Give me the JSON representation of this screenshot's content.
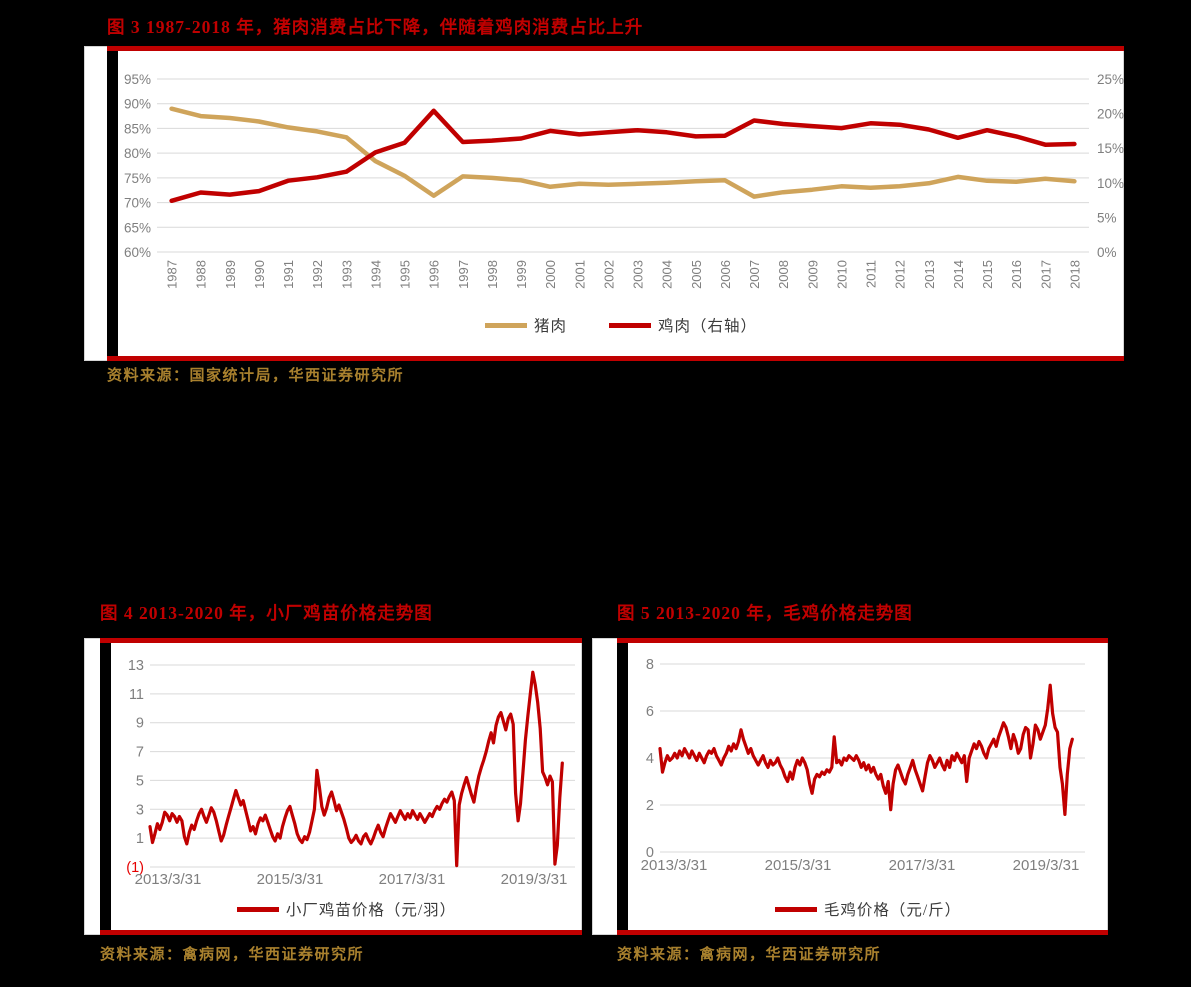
{
  "page": {
    "background_color": "#000000"
  },
  "colors": {
    "accent_red": "#C00000",
    "pork_tan": "#CFA45B",
    "line_red": "#C00000",
    "source_gold": "#A9812E",
    "axis_label_gray": "#7F7F7F",
    "gridline_gray": "#D9D9D9",
    "negative_label_red": "#E60000"
  },
  "figures": [
    {
      "id": "fig3",
      "title": "图 3  1987-2018 年，猪肉消费占比下降，伴随着鸡肉消费占比上升",
      "source": "资料来源：国家统计局，华西证券研究所",
      "legend": [
        {
          "label": "猪肉"
        },
        {
          "label": "鸡肉（右轴）"
        }
      ]
    },
    {
      "id": "fig4",
      "title": "图 4  2013-2020 年，小厂鸡苗价格走势图",
      "source": "资料来源：禽病网，华西证券研究所",
      "legend": [
        {
          "label": "小厂鸡苗价格（元/羽）"
        }
      ]
    },
    {
      "id": "fig5",
      "title": "图 5  2013-2020 年，毛鸡价格走势图",
      "source": "资料来源：禽病网，华西证券研究所",
      "legend": [
        {
          "label": "毛鸡价格（元/斤）"
        }
      ]
    }
  ],
  "chart_data": [
    {
      "type": "line",
      "title": "1987-2018 年，猪肉消费占比下降，伴随着鸡肉消费占比上升",
      "categories": [
        "1987",
        "1988",
        "1989",
        "1990",
        "1991",
        "1992",
        "1993",
        "1994",
        "1995",
        "1996",
        "1997",
        "1998",
        "1999",
        "2000",
        "2001",
        "2002",
        "2003",
        "2004",
        "2005",
        "2006",
        "2007",
        "2008",
        "2009",
        "2010",
        "2011",
        "2012",
        "2013",
        "2014",
        "2015",
        "2016",
        "2017",
        "2018"
      ],
      "left_axis": {
        "min": 60,
        "max": 95,
        "step": 5,
        "unit": "%",
        "tick_labels": [
          "60%",
          "65%",
          "70%",
          "75%",
          "80%",
          "85%",
          "90%",
          "95%"
        ]
      },
      "right_axis": {
        "min": 0,
        "max": 25,
        "step": 5,
        "unit": "%",
        "tick_labels": [
          "0%",
          "5%",
          "10%",
          "15%",
          "20%",
          "25%"
        ]
      },
      "grid": true,
      "legend_position": "bottom",
      "series": [
        {
          "name": "猪肉",
          "axis": "left",
          "color": "#CFA45B",
          "values": [
            89.0,
            87.5,
            87.1,
            86.4,
            85.2,
            84.4,
            83.2,
            78.4,
            75.4,
            71.4,
            75.3,
            75.0,
            74.5,
            73.2,
            73.8,
            73.6,
            73.8,
            74.0,
            74.3,
            74.5,
            71.2,
            72.1,
            72.6,
            73.3,
            73.0,
            73.3,
            73.9,
            75.2,
            74.4,
            74.2,
            74.8,
            74.3
          ]
        },
        {
          "name": "鸡肉（右轴）",
          "axis": "right",
          "color": "#C00000",
          "values": [
            7.4,
            8.6,
            8.3,
            8.8,
            10.3,
            10.8,
            11.6,
            14.4,
            15.8,
            20.4,
            15.9,
            16.1,
            16.4,
            17.5,
            17.0,
            17.3,
            17.6,
            17.3,
            16.7,
            16.8,
            19.0,
            18.5,
            18.2,
            17.9,
            18.6,
            18.4,
            17.7,
            16.5,
            17.6,
            16.7,
            15.5,
            15.6
          ]
        }
      ]
    },
    {
      "type": "line",
      "title": "2013-2020 年，小厂鸡苗价格走势图",
      "x_tick_labels": [
        "2013/3/31",
        "2015/3/31",
        "2017/3/31",
        "2019/3/31"
      ],
      "y_axis": {
        "min": -1,
        "max": 13,
        "step": 2,
        "tick_labels": [
          "13",
          "11",
          "9",
          "7",
          "5",
          "3",
          "1",
          "(1)"
        ],
        "negative_label_style": "red-parentheses"
      },
      "grid": true,
      "legend_position": "bottom",
      "series": [
        {
          "name": "小厂鸡苗价格（元/羽）",
          "color": "#C00000",
          "values": [
            1.8,
            0.7,
            1.3,
            2.0,
            1.6,
            2.1,
            2.8,
            2.6,
            2.2,
            2.7,
            2.5,
            2.1,
            2.5,
            2.2,
            1.1,
            0.6,
            1.4,
            1.9,
            1.6,
            2.2,
            2.7,
            3.0,
            2.5,
            2.1,
            2.6,
            3.1,
            2.8,
            2.2,
            1.5,
            0.8,
            1.2,
            1.9,
            2.5,
            3.1,
            3.7,
            4.3,
            3.8,
            3.3,
            3.6,
            2.9,
            2.2,
            1.5,
            1.8,
            1.3,
            2.0,
            2.4,
            2.2,
            2.6,
            2.1,
            1.6,
            1.1,
            0.8,
            1.3,
            1.0,
            1.8,
            2.4,
            2.9,
            3.2,
            2.6,
            2.0,
            1.3,
            0.9,
            0.7,
            1.1,
            0.9,
            1.4,
            2.2,
            3.0,
            5.7,
            4.6,
            3.2,
            2.6,
            3.1,
            3.8,
            4.2,
            3.6,
            2.9,
            3.3,
            2.8,
            2.3,
            1.7,
            1.0,
            0.7,
            0.9,
            1.2,
            0.8,
            0.6,
            1.1,
            1.3,
            0.9,
            0.6,
            1.0,
            1.5,
            1.9,
            1.4,
            1.1,
            1.7,
            2.2,
            2.7,
            2.4,
            2.1,
            2.5,
            2.9,
            2.6,
            2.3,
            2.7,
            2.4,
            2.9,
            2.6,
            2.3,
            2.7,
            2.4,
            2.1,
            2.4,
            2.7,
            2.5,
            2.9,
            3.2,
            3.0,
            3.4,
            3.7,
            3.5,
            3.9,
            4.2,
            3.6,
            -0.9,
            3.3,
            4.1,
            4.7,
            5.2,
            4.6,
            4.0,
            3.5,
            4.5,
            5.3,
            5.9,
            6.4,
            7.0,
            7.7,
            8.3,
            7.6,
            8.8,
            9.4,
            9.7,
            9.1,
            8.5,
            9.3,
            9.6,
            8.9,
            4.1,
            2.2,
            3.4,
            5.6,
            7.8,
            9.5,
            11.0,
            12.5,
            11.6,
            10.4,
            8.6,
            5.6,
            5.2,
            4.7,
            5.3,
            4.9,
            -0.8,
            0.5,
            3.8,
            6.2
          ]
        }
      ]
    },
    {
      "type": "line",
      "title": "2013-2020 年，毛鸡价格走势图",
      "x_tick_labels": [
        "2013/3/31",
        "2015/3/31",
        "2017/3/31",
        "2019/3/31"
      ],
      "y_axis": {
        "min": 0,
        "max": 8,
        "step": 2,
        "tick_labels": [
          "8",
          "6",
          "4",
          "2",
          "0"
        ]
      },
      "grid": true,
      "legend_position": "bottom",
      "series": [
        {
          "name": "毛鸡价格（元/斤）",
          "color": "#C00000",
          "values": [
            4.4,
            3.4,
            3.8,
            4.1,
            3.9,
            4.0,
            4.2,
            4.0,
            4.3,
            4.1,
            4.4,
            4.2,
            4.0,
            4.3,
            4.1,
            3.9,
            4.2,
            4.0,
            3.8,
            4.1,
            4.3,
            4.2,
            4.4,
            4.1,
            3.9,
            3.7,
            4.0,
            4.2,
            4.5,
            4.3,
            4.6,
            4.4,
            4.7,
            5.2,
            4.8,
            4.5,
            4.2,
            4.4,
            4.1,
            3.9,
            3.7,
            3.9,
            4.1,
            3.8,
            3.6,
            3.9,
            3.7,
            3.8,
            4.0,
            3.7,
            3.5,
            3.2,
            3.0,
            3.4,
            3.1,
            3.6,
            3.9,
            3.7,
            4.0,
            3.8,
            3.5,
            2.9,
            2.5,
            3.1,
            3.3,
            3.2,
            3.4,
            3.3,
            3.5,
            3.4,
            3.6,
            4.9,
            3.8,
            3.9,
            3.7,
            4.0,
            3.9,
            4.1,
            4.0,
            3.9,
            4.1,
            3.9,
            3.6,
            3.8,
            3.5,
            3.7,
            3.4,
            3.6,
            3.3,
            3.1,
            3.3,
            2.8,
            2.5,
            3.0,
            1.8,
            2.9,
            3.5,
            3.7,
            3.4,
            3.1,
            2.9,
            3.3,
            3.6,
            3.9,
            3.5,
            3.2,
            2.9,
            2.6,
            3.2,
            3.8,
            4.1,
            3.9,
            3.6,
            3.8,
            4.0,
            3.7,
            3.5,
            3.9,
            3.6,
            4.1,
            3.9,
            4.2,
            4.0,
            3.8,
            4.1,
            3.0,
            4.0,
            4.3,
            4.6,
            4.4,
            4.7,
            4.5,
            4.2,
            4.0,
            4.4,
            4.6,
            4.8,
            4.5,
            4.9,
            5.2,
            5.5,
            5.3,
            4.9,
            4.4,
            5.0,
            4.7,
            4.2,
            4.4,
            5.0,
            5.3,
            5.2,
            4.0,
            4.6,
            5.4,
            5.2,
            4.8,
            5.1,
            5.4,
            6.1,
            7.1,
            5.9,
            5.3,
            5.1,
            3.6,
            2.9,
            1.6,
            3.3,
            4.4,
            4.8
          ]
        }
      ]
    }
  ]
}
